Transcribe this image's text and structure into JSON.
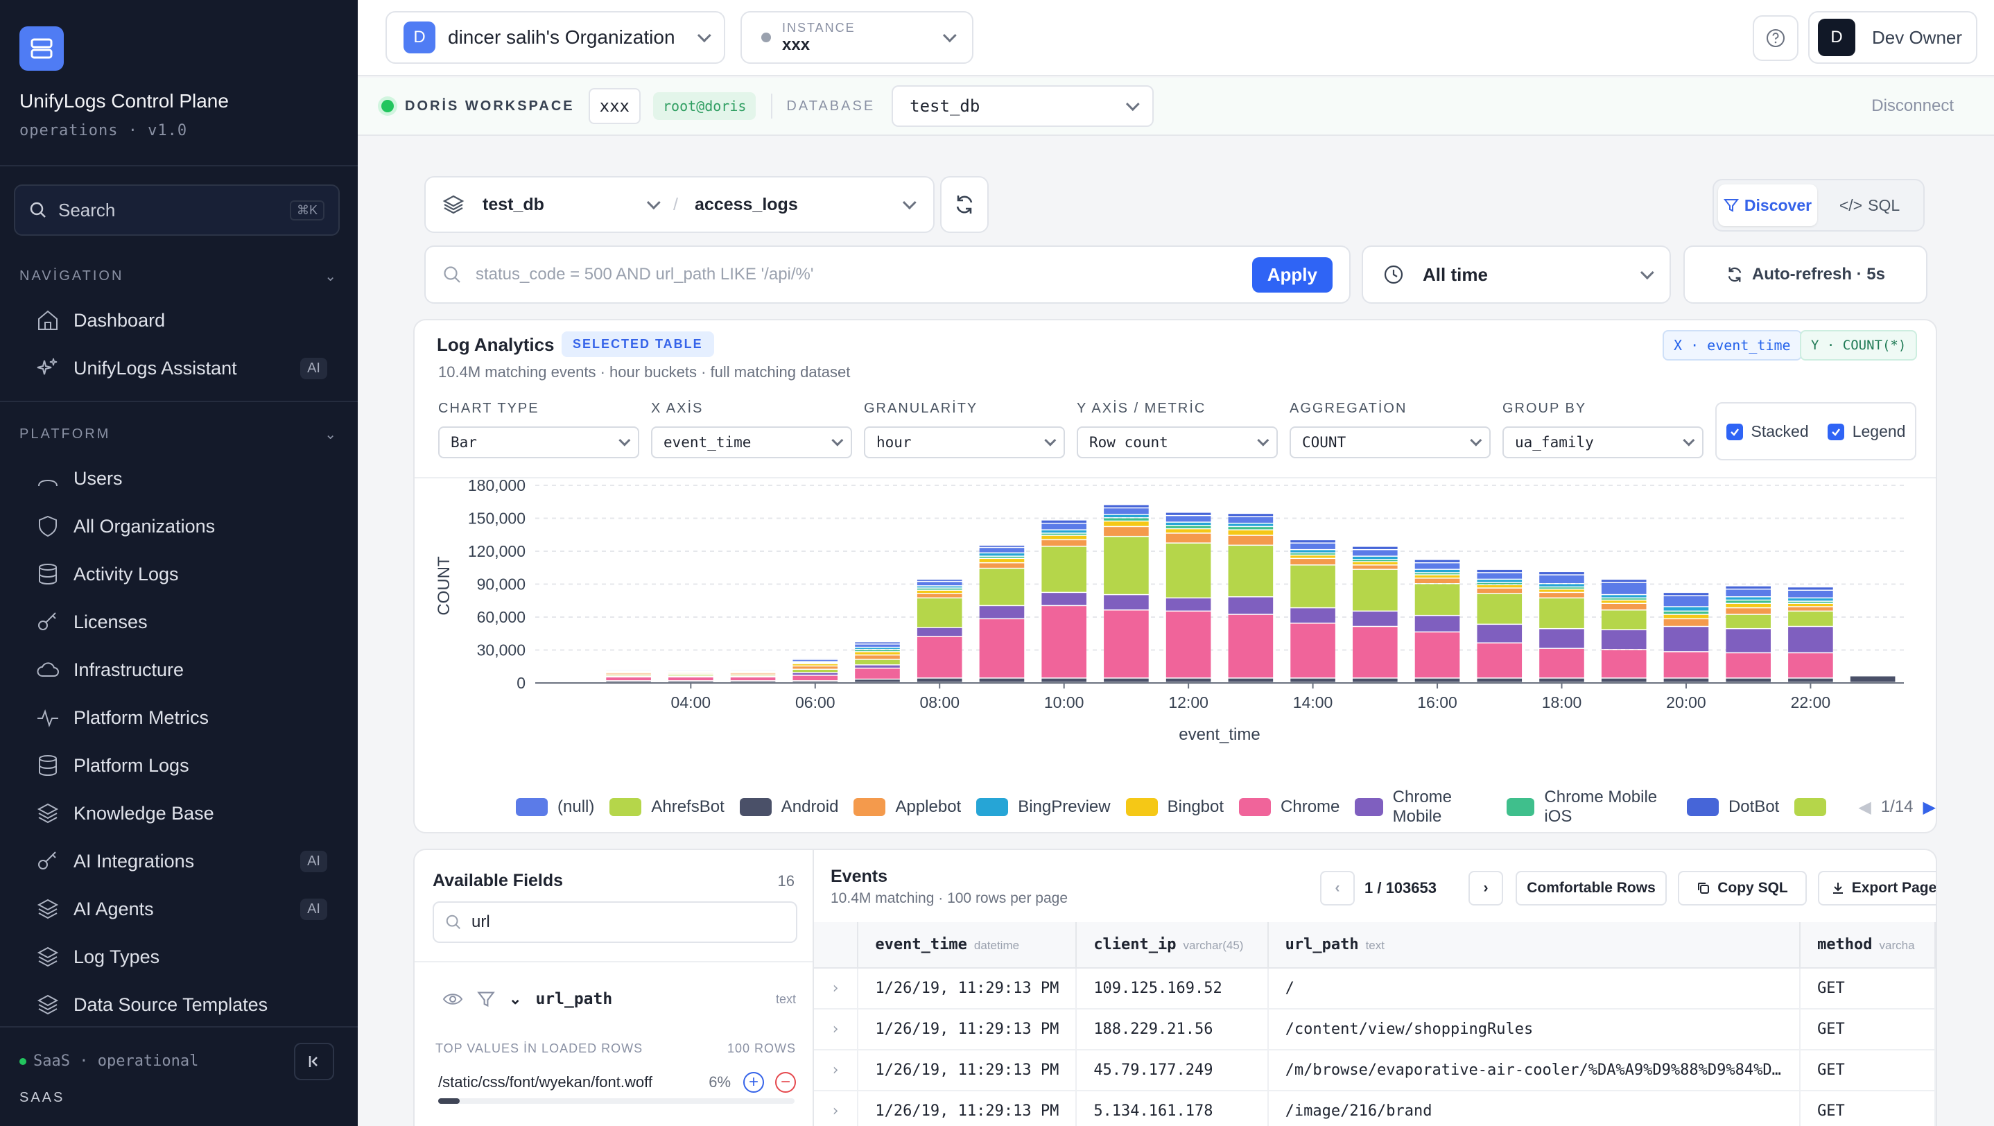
{
  "sidebar": {
    "app_title": "UnifyLogs Control Plane",
    "app_subtitle": "operations · v1.0",
    "search_label": "Search",
    "search_shortcut": "⌘K",
    "nav_heading": "NAVİGATION",
    "nav_items": [
      {
        "label": "Dashboard",
        "icon": "home-icon"
      },
      {
        "label": "UnifyLogs Assistant",
        "icon": "sparkle-icon",
        "badge": "AI"
      }
    ],
    "platform_heading": "PLATFORM",
    "platform_items": [
      {
        "label": "Users",
        "icon": "users-icon"
      },
      {
        "label": "All Organizations",
        "icon": "shield-icon"
      },
      {
        "label": "Activity Logs",
        "icon": "database-icon"
      },
      {
        "label": "Licenses",
        "icon": "key-icon"
      },
      {
        "label": "Infrastructure",
        "icon": "cloud-icon"
      },
      {
        "label": "Platform Metrics",
        "icon": "activity-icon"
      },
      {
        "label": "Platform Logs",
        "icon": "database-icon"
      },
      {
        "label": "Knowledge Base",
        "icon": "layers-icon"
      },
      {
        "label": "AI Integrations",
        "icon": "key-icon",
        "badge": "AI"
      },
      {
        "label": "AI Agents",
        "icon": "layers-icon",
        "badge": "AI"
      },
      {
        "label": "Log Types",
        "icon": "layers-icon"
      },
      {
        "label": "Data Source Templates",
        "icon": "layers-icon"
      }
    ],
    "footer_status": "SaaS · operational",
    "footer_label": "SAAS"
  },
  "topbar": {
    "org_initial": "D",
    "org_name": "dincer salih's Organization",
    "instance_label": "INSTANCE",
    "instance_value": "xxx",
    "user_initial": "D",
    "user_name": "Dev Owner"
  },
  "workspace": {
    "label": "DORİS WORKSPACE",
    "name": "xxx",
    "user": "root@doris",
    "db_label": "DATABASE",
    "db_value": "test_db",
    "disconnect": "Disconnect"
  },
  "query": {
    "database": "test_db",
    "table": "access_logs",
    "mode_discover": "Discover",
    "mode_sql": "SQL",
    "filter_placeholder": "status_code = 500 AND url_path LIKE '/api/%'",
    "apply": "Apply",
    "time_range": "All time",
    "auto_refresh": "Auto-refresh · 5s"
  },
  "analytics": {
    "title": "Log Analytics",
    "selected_badge": "SELECTED TABLE",
    "subtitle": "10.4M matching events · hour buckets · full matching dataset",
    "x_badge": "X · event_time",
    "y_badge": "Y · COUNT(*)",
    "controls": [
      {
        "label": "CHART TYPE",
        "value": "Bar"
      },
      {
        "label": "X AXİS",
        "value": "event_time"
      },
      {
        "label": "GRANULARİTY",
        "value": "hour"
      },
      {
        "label": "Y AXİS / METRİC",
        "value": "Row count"
      },
      {
        "label": "AGGREGATİON",
        "value": "COUNT"
      },
      {
        "label": "GROUP BY",
        "value": "ua_family"
      }
    ],
    "stacked_label": "Stacked",
    "legend_label": "Legend",
    "legend_page": "1/14"
  },
  "chart_data": {
    "type": "bar",
    "stacked": true,
    "xlabel": "event_time",
    "ylabel": "COUNT",
    "ylim": [
      0,
      180000
    ],
    "y_ticks": [
      0,
      30000,
      60000,
      90000,
      120000,
      150000,
      180000
    ],
    "y_tick_labels": [
      "0",
      "30,000",
      "60,000",
      "90,000",
      "120,000",
      "150,000",
      "180,000"
    ],
    "x_tick_labels": [
      "04:00",
      "06:00",
      "08:00",
      "10:00",
      "12:00",
      "14:00",
      "16:00",
      "18:00",
      "20:00",
      "22:00"
    ],
    "categories": [
      "02:00",
      "03:00",
      "04:00",
      "05:00",
      "06:00",
      "07:00",
      "08:00",
      "09:00",
      "10:00",
      "11:00",
      "12:00",
      "13:00",
      "14:00",
      "15:00",
      "16:00",
      "17:00",
      "18:00",
      "19:00",
      "20:00",
      "21:00",
      "22:00",
      "23:00"
    ],
    "series": [
      {
        "name": "Android",
        "color": "#4a5068",
        "values": [
          200,
          1500,
          1500,
          1500,
          1500,
          3000,
          4000,
          4000,
          4000,
          4000,
          4000,
          4000,
          4000,
          4000,
          4000,
          4000,
          4000,
          4000,
          4000,
          4000,
          4000,
          6000
        ]
      },
      {
        "name": "Chrome",
        "color": "#f0649a",
        "values": [
          300,
          3500,
          3500,
          3500,
          5000,
          10000,
          38000,
          54000,
          66000,
          62000,
          61000,
          58000,
          50000,
          47000,
          42000,
          32000,
          27000,
          26000,
          24000,
          23000,
          23000,
          0
        ]
      },
      {
        "name": "Chrome Mobile",
        "color": "#7f5fbf",
        "values": [
          0,
          800,
          800,
          800,
          2500,
          3000,
          8000,
          12000,
          12000,
          14000,
          12000,
          16000,
          14000,
          14000,
          15000,
          17000,
          18000,
          18000,
          23000,
          22000,
          24000,
          0
        ]
      },
      {
        "name": "AhrefsBot",
        "color": "#b5d64a",
        "values": [
          0,
          1200,
          1500,
          1200,
          3000,
          5000,
          27000,
          34000,
          42000,
          53000,
          50000,
          47000,
          39000,
          38000,
          29000,
          28000,
          28000,
          18000,
          0,
          13000,
          14000,
          0
        ]
      },
      {
        "name": "Applebot",
        "color": "#f49a4c",
        "values": [
          0,
          1500,
          1000,
          1500,
          3000,
          4000,
          4000,
          5000,
          6000,
          9000,
          9000,
          9000,
          6000,
          4000,
          5000,
          5000,
          5000,
          6000,
          7000,
          6000,
          4000,
          0
        ]
      },
      {
        "name": "Bingbot",
        "color": "#f5c816",
        "values": [
          0,
          1000,
          1000,
          1000,
          2000,
          3000,
          3000,
          4000,
          4000,
          5000,
          4000,
          5000,
          3000,
          3000,
          3000,
          3000,
          3000,
          3000,
          4000,
          4000,
          3000,
          0
        ]
      },
      {
        "name": "Chrome Mobile iOS",
        "color": "#3fbf8c",
        "values": [
          0,
          500,
          500,
          500,
          1000,
          2000,
          2000,
          2000,
          2000,
          3000,
          3000,
          3000,
          2000,
          2000,
          2000,
          2000,
          2000,
          2000,
          3000,
          3000,
          2000,
          0
        ]
      },
      {
        "name": "BingPreview",
        "color": "#26a5d6",
        "values": [
          0,
          500,
          500,
          500,
          1000,
          2000,
          2000,
          3000,
          3000,
          3000,
          3000,
          3000,
          3000,
          3000,
          3000,
          3000,
          3000,
          3000,
          4000,
          3000,
          3000,
          0
        ]
      },
      {
        "name": "(null)",
        "color": "#5b7be8",
        "values": [
          0,
          1000,
          1000,
          1000,
          2000,
          3000,
          4000,
          5000,
          6000,
          6000,
          6000,
          6000,
          6000,
          6000,
          6000,
          6000,
          8000,
          11000,
          10000,
          7000,
          7000,
          0
        ]
      },
      {
        "name": "DotBot",
        "color": "#4665d8",
        "values": [
          0,
          500,
          500,
          500,
          1000,
          2000,
          2000,
          2000,
          3000,
          3000,
          3000,
          3000,
          3000,
          3000,
          3000,
          3000,
          3000,
          3000,
          3000,
          3000,
          3000,
          0
        ]
      }
    ]
  },
  "legend_items": [
    {
      "name": "(null)",
      "color": "#5b7be8"
    },
    {
      "name": "AhrefsBot",
      "color": "#b5d64a"
    },
    {
      "name": "Android",
      "color": "#4a5068"
    },
    {
      "name": "Applebot",
      "color": "#f49a4c"
    },
    {
      "name": "BingPreview",
      "color": "#26a5d6"
    },
    {
      "name": "Bingbot",
      "color": "#f5c816"
    },
    {
      "name": "Chrome",
      "color": "#f0649a"
    },
    {
      "name": "Chrome Mobile",
      "color": "#7f5fbf"
    },
    {
      "name": "Chrome Mobile iOS",
      "color": "#3fbf8c"
    },
    {
      "name": "DotBot",
      "color": "#4665d8"
    },
    {
      "name": "",
      "color": "#b5d64a"
    }
  ],
  "fields": {
    "title": "Available Fields",
    "count": "16",
    "search_value": "url",
    "field_name": "url_path",
    "field_type": "text",
    "top_values_label": "TOP VALUES İN LOADED ROWS",
    "rows_label": "100 ROWS",
    "top_value": "/static/css/font/wyekan/font.woff",
    "top_value_pct": "6%",
    "top_value_fraction": 0.06
  },
  "events": {
    "title": "Events",
    "subtitle": "10.4M matching · 100 rows per page",
    "page_info": "1 / 103653",
    "comfortable_rows": "Comfortable Rows",
    "copy_sql": "Copy SQL",
    "export_page": "Export Page",
    "columns": [
      {
        "name": "event_time",
        "type": "datetime"
      },
      {
        "name": "client_ip",
        "type": "varchar(45)"
      },
      {
        "name": "url_path",
        "type": "text"
      },
      {
        "name": "method",
        "type": "varcha"
      }
    ],
    "rows": [
      [
        "1/26/19, 11:29:13 PM",
        "109.125.169.52",
        "/",
        "GET"
      ],
      [
        "1/26/19, 11:29:13 PM",
        "188.229.21.56",
        "/content/view/shoppingRules",
        "GET"
      ],
      [
        "1/26/19, 11:29:13 PM",
        "45.79.177.249",
        "/m/browse/evaporative-air-cooler/%DA%A9%D9%88%D9%84%D…",
        "GET"
      ],
      [
        "1/26/19, 11:29:13 PM",
        "5.134.161.178",
        "/image/216/brand",
        "GET"
      ]
    ]
  }
}
